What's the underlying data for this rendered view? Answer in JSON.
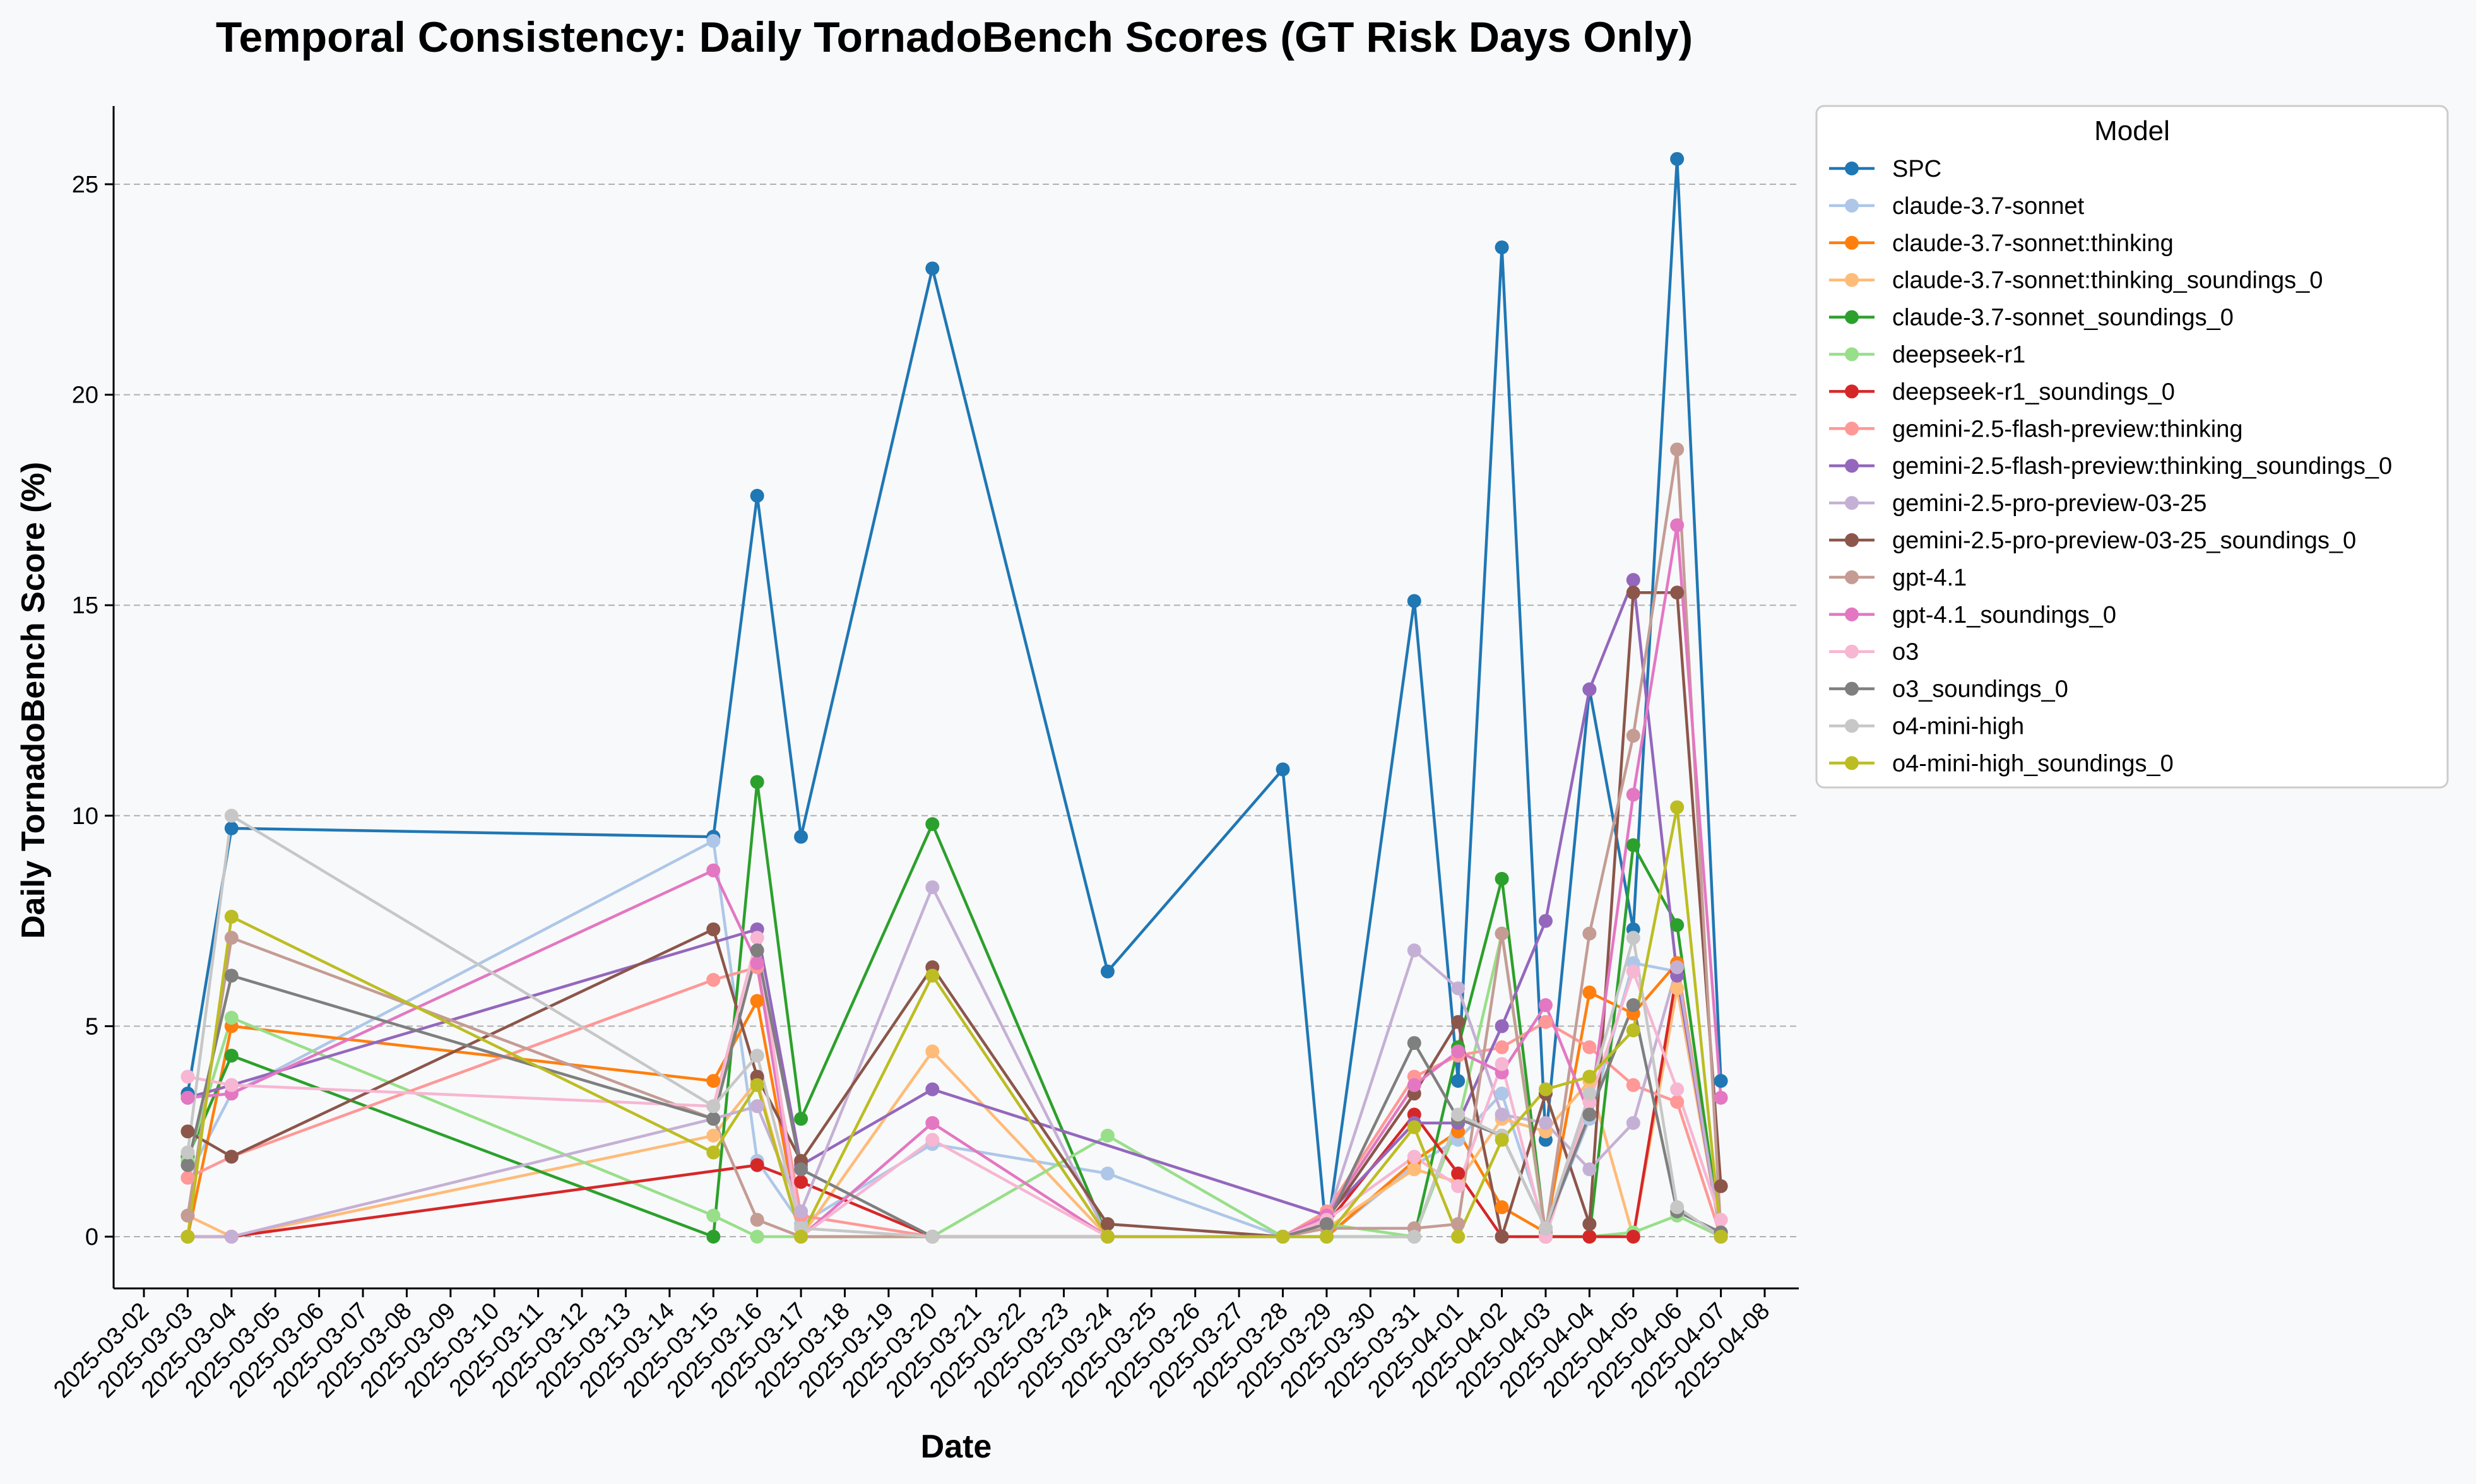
{
  "chart_data": {
    "type": "line",
    "title": "Temporal Consistency: Daily TornadoBench Scores (GT Risk Days Only)",
    "xlabel": "Date",
    "ylabel": "Daily TornadoBench Score (%)",
    "xlim": [
      "2025-03-02",
      "2025-04-08"
    ],
    "ylim": [
      -1.2,
      26.9
    ],
    "y_ticks": [
      0,
      5,
      10,
      15,
      20,
      25
    ],
    "x_tick_labels": [
      "2025-03-02",
      "2025-03-03",
      "2025-03-04",
      "2025-03-05",
      "2025-03-06",
      "2025-03-07",
      "2025-03-08",
      "2025-03-09",
      "2025-03-10",
      "2025-03-11",
      "2025-03-12",
      "2025-03-13",
      "2025-03-14",
      "2025-03-15",
      "2025-03-16",
      "2025-03-17",
      "2025-03-18",
      "2025-03-19",
      "2025-03-20",
      "2025-03-21",
      "2025-03-22",
      "2025-03-23",
      "2025-03-24",
      "2025-03-25",
      "2025-03-26",
      "2025-03-27",
      "2025-03-28",
      "2025-03-29",
      "2025-03-30",
      "2025-03-31",
      "2025-04-01",
      "2025-04-02",
      "2025-04-03",
      "2025-04-04",
      "2025-04-05",
      "2025-04-06",
      "2025-04-07",
      "2025-04-08"
    ],
    "grid": "horizontal dashed",
    "legend_title": "Model",
    "legend_position": "outside right",
    "x": [
      "2025-03-03",
      "2025-03-04",
      "2025-03-15",
      "2025-03-16",
      "2025-03-17",
      "2025-03-20",
      "2025-03-24",
      "2025-03-28",
      "2025-03-29",
      "2025-03-31",
      "2025-04-01",
      "2025-04-02",
      "2025-04-03",
      "2025-04-04",
      "2025-04-05",
      "2025-04-06",
      "2025-04-07",
      "2025-04-08"
    ],
    "series": [
      {
        "name": "SPC",
        "color": "#1f77b4",
        "values": [
          3.4,
          9.7,
          9.5,
          17.6,
          9.5,
          23.0,
          6.3,
          11.1,
          0.0,
          15.1,
          3.7,
          23.5,
          2.3,
          13.0,
          7.3,
          25.6,
          3.7,
          null
        ]
      },
      {
        "name": "claude-3.7-sonnet",
        "color": "#aec7e8",
        "values": [
          1.4,
          3.4,
          9.4,
          1.8,
          0.3,
          2.2,
          1.5,
          0.0,
          0.0,
          1.7,
          2.3,
          3.4,
          0.2,
          2.8,
          6.5,
          6.3,
          0.0,
          null
        ]
      },
      {
        "name": "claude-3.7-sonnet:thinking",
        "color": "#ff7f0e",
        "values": [
          0.0,
          5.0,
          3.7,
          5.6,
          0.0,
          0.0,
          0.0,
          0.0,
          0.0,
          1.8,
          2.5,
          0.7,
          0.1,
          5.8,
          5.3,
          6.5,
          0.0,
          null
        ]
      },
      {
        "name": "claude-3.7-sonnet:thinking_soundings_0",
        "color": "#ffbb78",
        "values": [
          0.5,
          0.0,
          2.4,
          3.7,
          0.0,
          4.4,
          0.0,
          0.0,
          0.2,
          1.6,
          1.3,
          2.8,
          2.5,
          3.7,
          0.0,
          5.9,
          0.0,
          null
        ]
      },
      {
        "name": "claude-3.7-sonnet_soundings_0",
        "color": "#2ca02c",
        "values": [
          1.9,
          4.3,
          0.0,
          10.8,
          2.8,
          9.8,
          0.0,
          0.0,
          0.0,
          0.0,
          4.5,
          8.5,
          0.0,
          0.0,
          9.3,
          7.4,
          0.0,
          null
        ]
      },
      {
        "name": "deepseek-r1",
        "color": "#98df8a",
        "values": [
          1.8,
          5.2,
          0.5,
          0.0,
          0.0,
          0.0,
          2.4,
          0.0,
          0.3,
          0.0,
          2.7,
          7.2,
          0.0,
          0.0,
          0.1,
          0.5,
          0.0,
          null
        ]
      },
      {
        "name": "deepseek-r1_soundings_0",
        "color": "#d62728",
        "values": [
          0.0,
          0.0,
          null,
          1.7,
          1.3,
          0.0,
          0.0,
          0.0,
          0.3,
          2.9,
          1.5,
          0.0,
          0.0,
          0.0,
          0.0,
          6.3,
          0.0,
          null
        ]
      },
      {
        "name": "gemini-2.5-flash-preview:thinking",
        "color": "#ff9896",
        "values": [
          1.4,
          1.9,
          6.1,
          6.4,
          0.5,
          0.0,
          0.0,
          0.0,
          0.6,
          3.8,
          4.3,
          4.5,
          5.1,
          4.5,
          3.6,
          3.2,
          0.0,
          null
        ]
      },
      {
        "name": "gemini-2.5-flash-preview:thinking_soundings_0",
        "color": "#9467bd",
        "values": [
          3.3,
          3.6,
          null,
          7.3,
          1.7,
          3.5,
          null,
          null,
          0.5,
          2.7,
          2.7,
          5.0,
          7.5,
          13.0,
          15.6,
          6.2,
          0.0,
          null
        ]
      },
      {
        "name": "gemini-2.5-pro-preview-03-25",
        "color": "#c5b0d5",
        "values": [
          0.0,
          0.0,
          2.8,
          3.1,
          0.6,
          8.3,
          0.0,
          0.0,
          0.4,
          6.8,
          5.9,
          2.9,
          2.7,
          1.6,
          2.7,
          6.4,
          0.0,
          null
        ]
      },
      {
        "name": "gemini-2.5-pro-preview-03-25_soundings_0",
        "color": "#8c564b",
        "values": [
          2.5,
          1.9,
          7.3,
          3.8,
          1.8,
          6.4,
          0.3,
          0.0,
          0.4,
          3.4,
          5.1,
          0.0,
          3.4,
          0.3,
          15.3,
          15.3,
          1.2,
          null
        ]
      },
      {
        "name": "gpt-4.1",
        "color": "#c49c94",
        "values": [
          0.5,
          7.1,
          2.8,
          0.4,
          0.0,
          0.0,
          0.0,
          0.0,
          0.2,
          0.2,
          0.3,
          7.2,
          0.1,
          7.2,
          11.9,
          18.7,
          0.1,
          null
        ]
      },
      {
        "name": "gpt-4.1_soundings_0",
        "color": "#e377c2",
        "values": [
          3.3,
          3.4,
          8.7,
          6.5,
          0.0,
          2.7,
          0.0,
          0.0,
          0.5,
          3.6,
          4.4,
          3.9,
          5.5,
          2.9,
          10.5,
          16.9,
          3.3,
          null
        ]
      },
      {
        "name": "o3",
        "color": "#f7b6d2",
        "values": [
          3.8,
          3.6,
          3.1,
          7.1,
          0.0,
          2.3,
          0.0,
          0.0,
          0.4,
          1.9,
          1.2,
          4.1,
          0.0,
          3.2,
          6.3,
          3.5,
          0.4,
          null
        ]
      },
      {
        "name": "o3_soundings_0",
        "color": "#7f7f7f",
        "values": [
          1.7,
          6.2,
          2.8,
          6.8,
          1.6,
          0.0,
          0.0,
          0.0,
          0.3,
          4.6,
          2.8,
          2.4,
          0.2,
          2.9,
          5.5,
          0.6,
          0.1,
          null
        ]
      },
      {
        "name": "o4-mini-high",
        "color": "#c7c7c7",
        "values": [
          2.0,
          10.0,
          3.1,
          4.3,
          0.2,
          0.0,
          0.0,
          0.0,
          0.0,
          0.0,
          2.9,
          2.4,
          0.2,
          3.4,
          7.1,
          0.7,
          0.0,
          null
        ]
      },
      {
        "name": "o4-mini-high_soundings_0",
        "color": "#bcbd22",
        "values": [
          0.0,
          7.6,
          2.0,
          3.6,
          0.0,
          6.2,
          0.0,
          0.0,
          0.0,
          2.6,
          0.0,
          2.3,
          3.5,
          3.8,
          4.9,
          10.2,
          0.0,
          null
        ]
      }
    ]
  }
}
